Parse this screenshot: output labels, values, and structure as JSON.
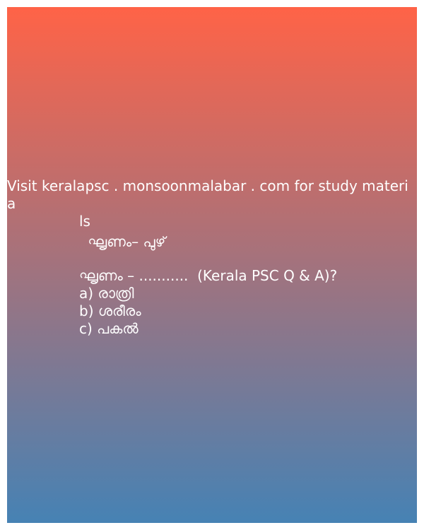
{
  "header": {
    "visit_line1": "Visit keralapsc . monsoonmalabar . com for study materia",
    "visit_line2": "ls"
  },
  "pair": {
    "text": " ഘൃണം– പുഴ്"
  },
  "question": {
    "text": "ഘൃണം – ...........  (Kerala PSC Q & A)?"
  },
  "options": [
    {
      "label": "a) രാത്രി"
    },
    {
      "label": "b) ശരീരം"
    },
    {
      "label": "c) പകൽ"
    }
  ],
  "colors": {
    "gradient_top": "#FF6347",
    "gradient_bottom": "#4682B4",
    "text": "#FFFFFF"
  }
}
